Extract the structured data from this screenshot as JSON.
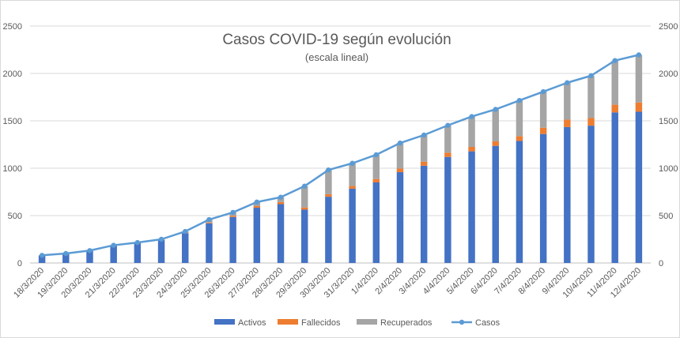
{
  "chart_data": {
    "type": "bar",
    "title": "Casos COVID-19 según evolución",
    "subtitle": "(escala lineal)",
    "stacked": true,
    "categories": [
      "18/3/2020",
      "19/3/2020",
      "20/3/2020",
      "21/3/2020",
      "22/3/2020",
      "23/3/2020",
      "24/3/2020",
      "25/3/2020",
      "26/3/2020",
      "27/3/2020",
      "28/3/2020",
      "29/3/2020",
      "30/3/2020",
      "31/3/2020",
      "1/4/2020",
      "2/4/2020",
      "3/4/2020",
      "4/4/2020",
      "5/4/2020",
      "6/4/2020",
      "7/4/2020",
      "8/4/2020",
      "9/4/2020",
      "10/4/2020",
      "11/4/2020",
      "12/4/2020"
    ],
    "series": [
      {
        "name": "Activos",
        "type": "bar",
        "color": "#4472c4",
        "values": [
          79,
          97,
          128,
          183,
          210,
          244,
          315,
          418,
          485,
          583,
          621,
          563,
          699,
          784,
          850,
          958,
          1026,
          1119,
          1178,
          1236,
          1288,
          1361,
          1434,
          1449,
          1589,
          1596
        ]
      },
      {
        "name": "Fallecidos",
        "type": "bar",
        "color": "#ed7d31",
        "values": [
          2,
          3,
          3,
          4,
          4,
          4,
          8,
          9,
          13,
          17,
          22,
          23,
          27,
          28,
          36,
          38,
          42,
          45,
          47,
          47,
          51,
          66,
          79,
          80,
          81,
          98
        ]
      },
      {
        "name": "Recuperados",
        "type": "bar",
        "color": "#a5a5a5",
        "values": [
          0,
          0,
          0,
          0,
          2,
          2,
          10,
          31,
          36,
          43,
          51,
          225,
          256,
          240,
          256,
          270,
          282,
          288,
          320,
          338,
          376,
          381,
          389,
          447,
          466,
          502
        ]
      },
      {
        "name": "Casos",
        "type": "line",
        "color": "#5b9bd5",
        "values": [
          81,
          100,
          131,
          187,
          216,
          250,
          333,
          458,
          534,
          643,
          694,
          811,
          982,
          1052,
          1142,
          1266,
          1350,
          1452,
          1545,
          1621,
          1715,
          1808,
          1902,
          1976,
          2136,
          2196
        ]
      }
    ],
    "ylim": [
      0,
      2500
    ],
    "y_ticks": [
      "0",
      "500",
      "1000",
      "1500",
      "2000",
      "2500"
    ],
    "secondary_y_ticks": [
      "0",
      "500",
      "1000",
      "1500",
      "2000",
      "2500"
    ],
    "grid": true,
    "legend_position": "bottom"
  }
}
